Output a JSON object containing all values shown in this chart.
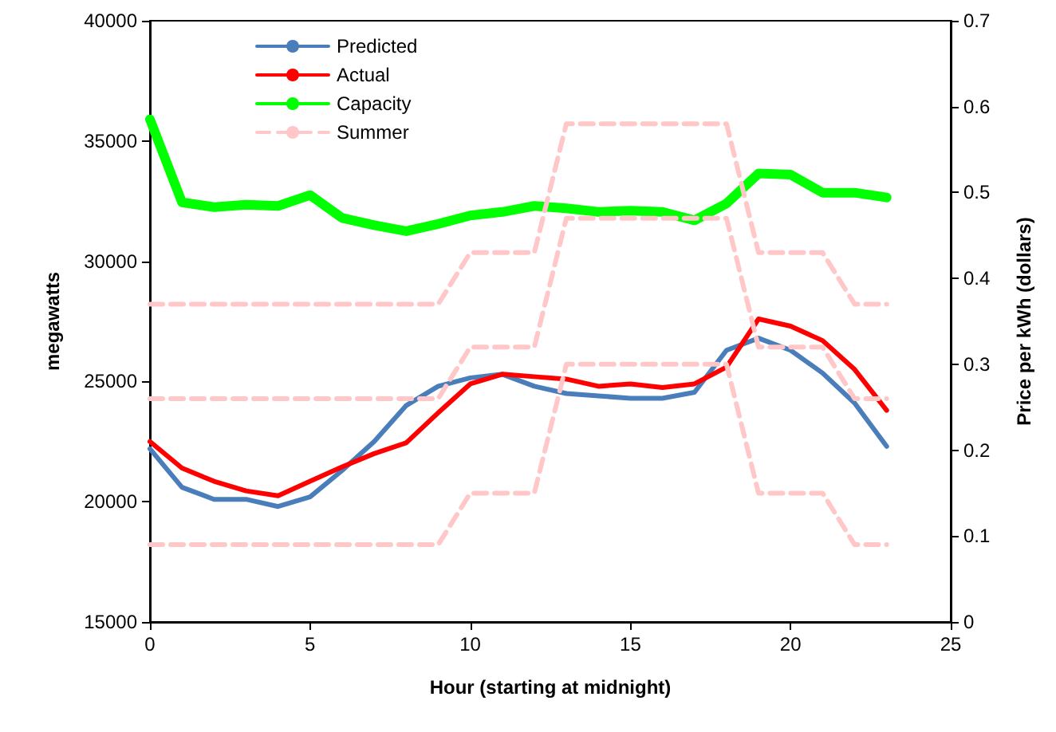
{
  "chart_data": {
    "type": "line",
    "xlabel": "Hour (starting at midnight)",
    "ylabel": "megawatts",
    "y2label": "Price per kWh (dollars)",
    "x": [
      0,
      1,
      2,
      3,
      4,
      5,
      6,
      7,
      8,
      9,
      10,
      11,
      12,
      13,
      14,
      15,
      16,
      17,
      18,
      19,
      20,
      21,
      22,
      23
    ],
    "xlim": [
      0,
      25
    ],
    "xticks": [
      0,
      5,
      10,
      15,
      20,
      25
    ],
    "ylim": [
      15000,
      40000
    ],
    "yticks": [
      15000,
      20000,
      25000,
      30000,
      35000,
      40000
    ],
    "y2lim": [
      0,
      0.7
    ],
    "y2ticks": [
      0,
      0.1,
      0.2,
      0.3,
      0.4,
      0.5,
      0.6,
      0.7
    ],
    "grid": false,
    "legend": "top left",
    "marker": "none",
    "series": [
      {
        "name": "Predicted",
        "color": "#4a7ebb",
        "values": [
          22200,
          20600,
          20100,
          20100,
          19800,
          20200,
          21300,
          22500,
          24000,
          24800,
          25150,
          25300,
          24800,
          24500,
          24400,
          24300,
          24300,
          24550,
          26300,
          26800,
          26300,
          25350,
          24100,
          22300
        ]
      },
      {
        "name": "Actual",
        "color": "#ff0000",
        "values": [
          22500,
          21400,
          20850,
          20450,
          20250,
          20850,
          21450,
          22000,
          22450,
          23700,
          24900,
          25300,
          25200,
          25100,
          24800,
          24900,
          24750,
          24900,
          25600,
          27600,
          27300,
          26700,
          25500,
          23800
        ]
      },
      {
        "name": "Capacity",
        "color": "#00ff00",
        "values": [
          35900,
          32450,
          32250,
          32350,
          32300,
          32750,
          31800,
          31500,
          31250,
          31550,
          31900,
          32050,
          32300,
          32200,
          32050,
          32100,
          32050,
          31700,
          32400,
          33650,
          33600,
          32850,
          32850,
          32650
        ]
      },
      {
        "name": "Summer",
        "color": "#ffc7c7",
        "axis": "y2",
        "line_style": "dashed",
        "values": [
          0.37,
          0.37,
          0.37,
          0.37,
          0.37,
          0.37,
          0.37,
          0.37,
          0.37,
          0.37,
          0.43,
          0.43,
          0.43,
          0.58,
          0.58,
          0.58,
          0.58,
          0.58,
          0.58,
          0.43,
          0.43,
          0.43,
          0.37,
          0.37
        ]
      },
      {
        "color": "#ffc7c7",
        "axis": "y2",
        "line_style": "dashed",
        "values": [
          0.26,
          0.26,
          0.26,
          0.26,
          0.26,
          0.26,
          0.26,
          0.26,
          0.26,
          0.26,
          0.32,
          0.32,
          0.32,
          0.47,
          0.47,
          0.47,
          0.47,
          0.47,
          0.47,
          0.32,
          0.32,
          0.32,
          0.26,
          0.26
        ]
      },
      {
        "color": "#ffc7c7",
        "axis": "y2",
        "line_style": "dashed",
        "values": [
          0.09,
          0.09,
          0.09,
          0.09,
          0.09,
          0.09,
          0.09,
          0.09,
          0.09,
          0.09,
          0.15,
          0.15,
          0.15,
          0.3,
          0.3,
          0.3,
          0.3,
          0.3,
          0.3,
          0.15,
          0.15,
          0.15,
          0.09,
          0.09
        ]
      }
    ]
  }
}
